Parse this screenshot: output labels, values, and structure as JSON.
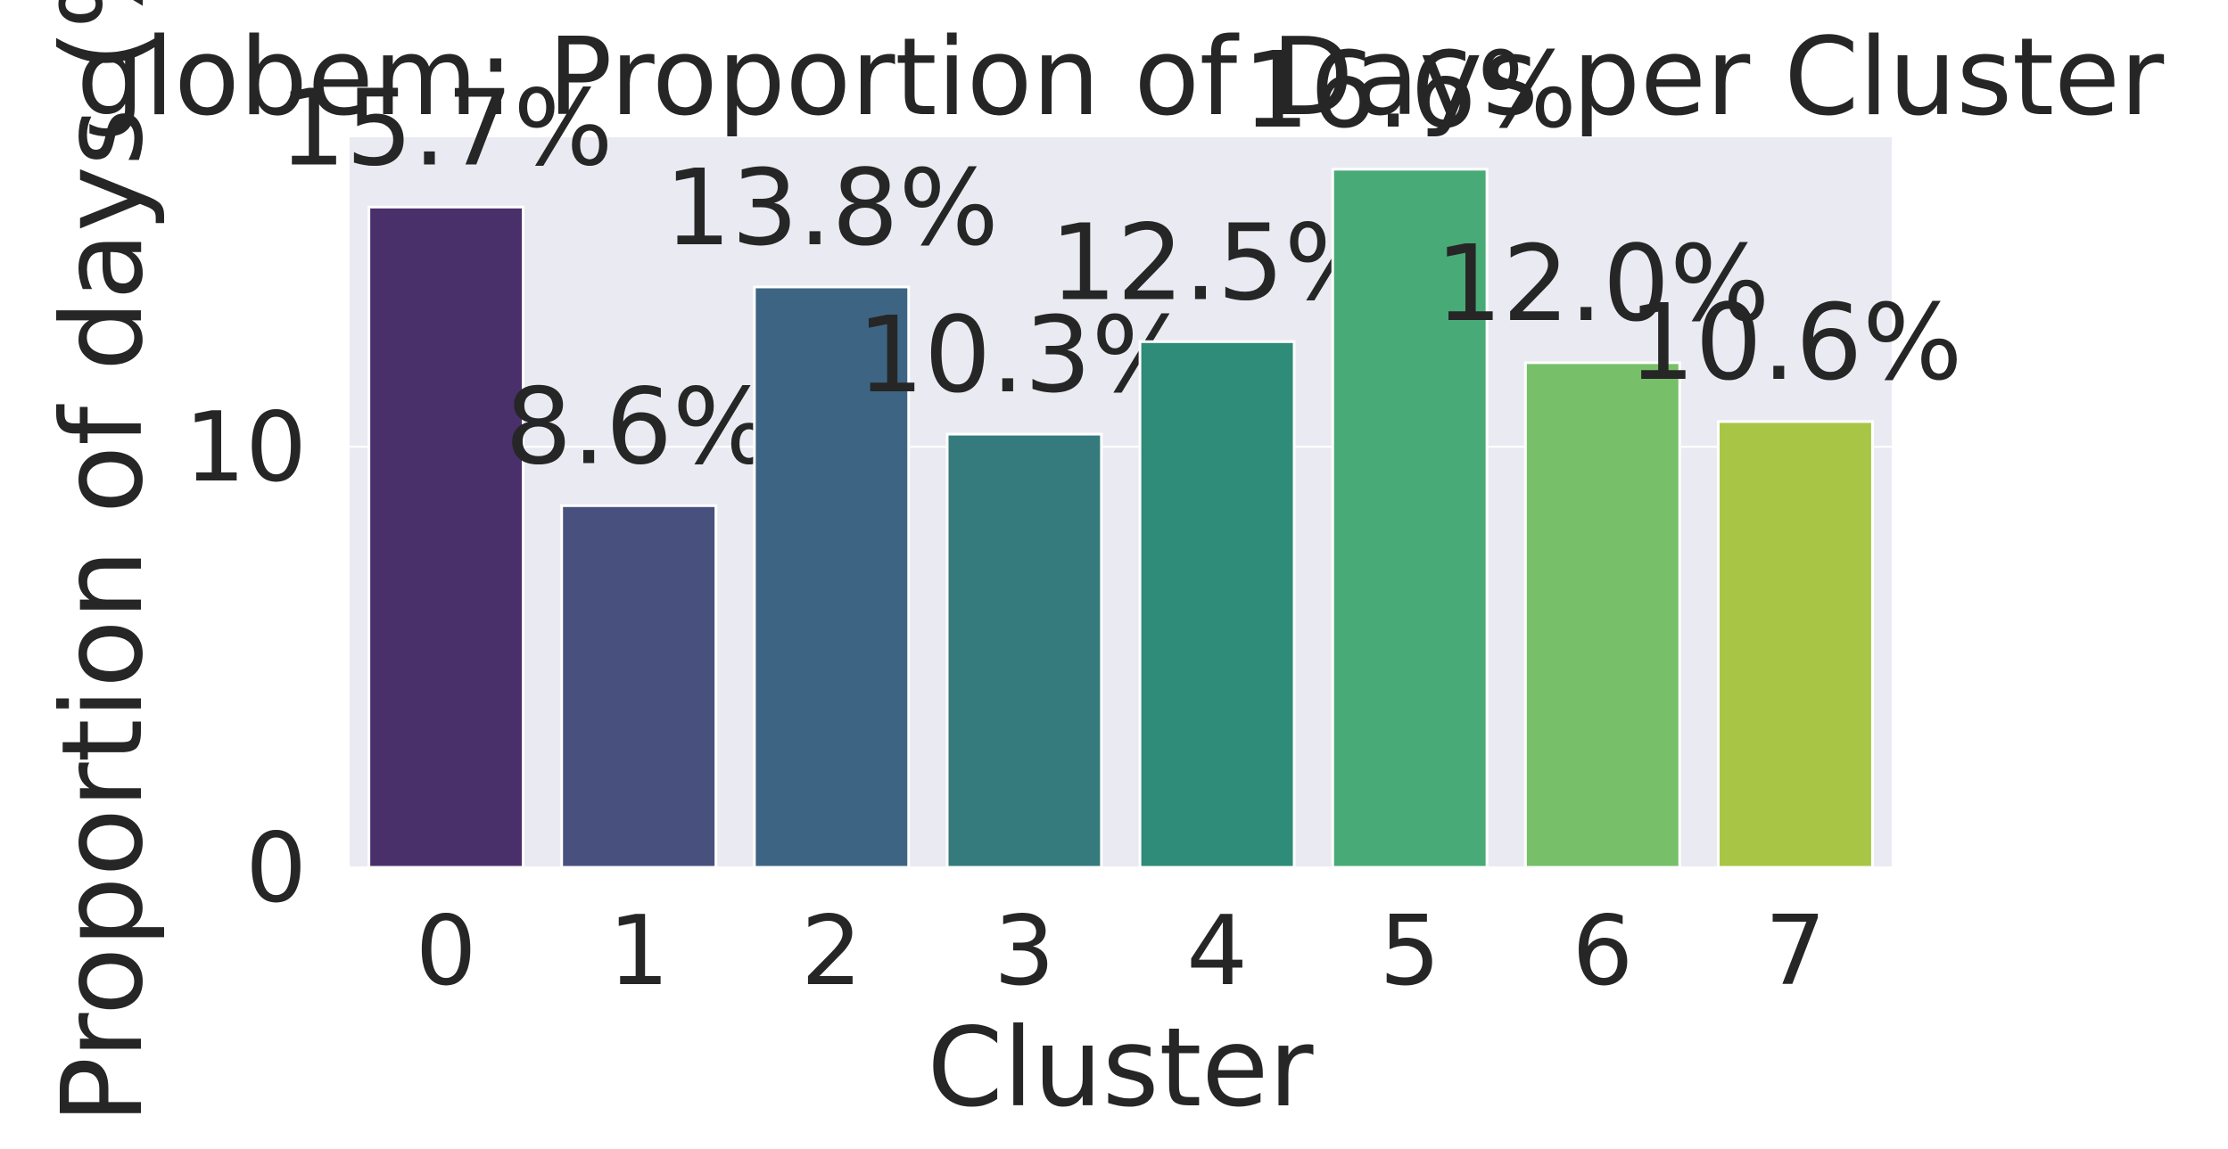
{
  "chart_data": {
    "type": "bar",
    "title": "globem: Proportion of Days per Cluster",
    "x_label": "Cluster",
    "y_label": "Proportion of days (%)",
    "categories": [
      "0",
      "1",
      "2",
      "3",
      "4",
      "5",
      "6",
      "7"
    ],
    "values": [
      15.7,
      8.6,
      13.8,
      10.3,
      12.5,
      16.6,
      12.0,
      10.6
    ],
    "value_labels": [
      "15.7%",
      "8.6%",
      "13.8%",
      "10.3%",
      "12.5%",
      "16.6%",
      "12.0%",
      "10.6%"
    ],
    "colors": [
      "#4a306b",
      "#48507e",
      "#3d6583",
      "#357a7d",
      "#2e8c79",
      "#48aa76",
      "#77bf68",
      "#a8c545"
    ],
    "ylim": [
      0,
      17.36
    ],
    "yticks": [
      0,
      10
    ],
    "grid": true
  }
}
